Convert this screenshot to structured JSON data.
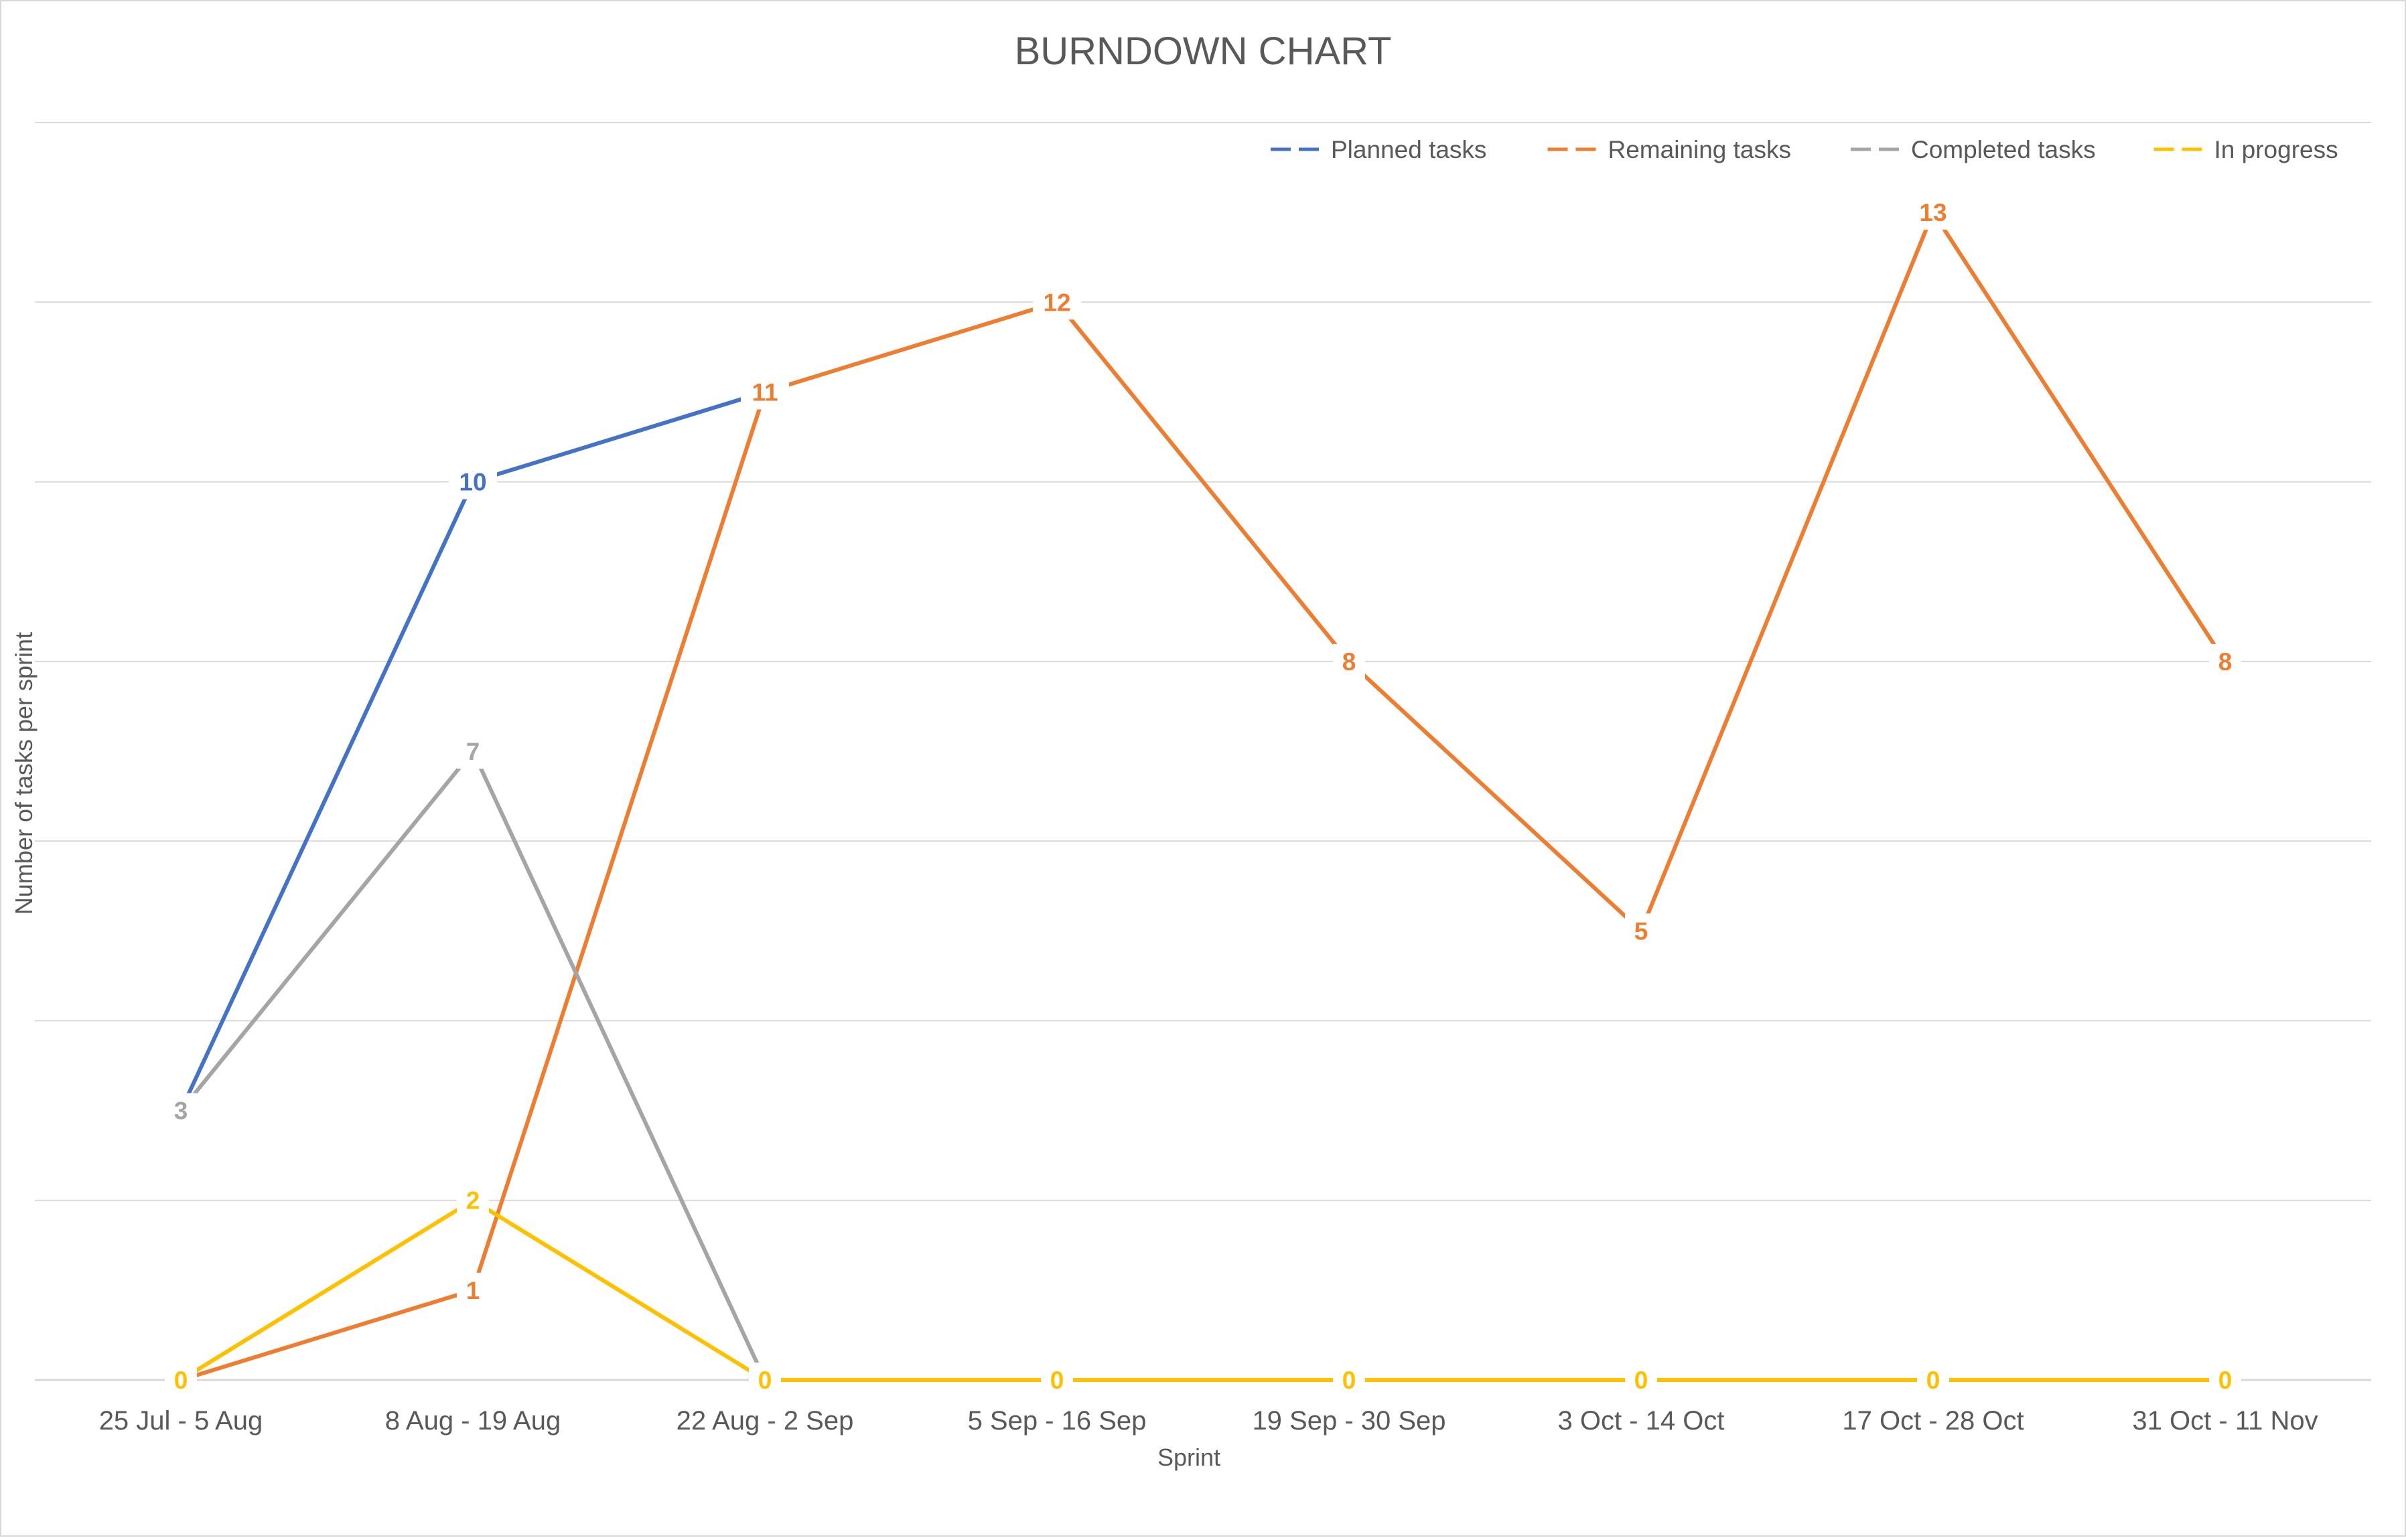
{
  "chart_data": {
    "type": "line",
    "title": "BURNDOWN CHART",
    "xlabel": "Sprint",
    "ylabel": "Number of tasks per sprint",
    "ylim": [
      0,
      14
    ],
    "grid": true,
    "legend_position": "top-right",
    "categories": [
      "25 Jul - 5 Aug",
      "8 Aug - 19 Aug",
      "22 Aug - 2 Sep",
      "5 Sep - 16 Sep",
      "19 Sep - 30 Sep",
      "3 Oct - 14 Oct",
      "17 Oct - 28 Oct",
      "31 Oct - 11 Nov"
    ],
    "series": [
      {
        "name": "Planned tasks",
        "color": "#4472C4",
        "values": [
          3,
          10,
          11,
          null,
          null,
          null,
          null,
          null
        ],
        "labels": [
          null,
          10,
          null,
          null,
          null,
          null,
          null,
          null
        ]
      },
      {
        "name": "Remaining tasks",
        "color": "#ED7D31",
        "values": [
          0,
          1,
          11,
          12,
          8,
          5,
          13,
          8
        ],
        "labels": [
          null,
          1,
          11,
          12,
          8,
          5,
          13,
          8
        ]
      },
      {
        "name": "Completed tasks",
        "color": "#A5A5A5",
        "values": [
          3,
          7,
          0,
          null,
          null,
          null,
          null,
          null
        ],
        "labels": [
          3,
          7,
          null,
          null,
          null,
          null,
          null,
          null
        ]
      },
      {
        "name": "In progress",
        "color": "#FFC000",
        "values": [
          0,
          2,
          0,
          0,
          0,
          0,
          0,
          0
        ],
        "labels": [
          0,
          2,
          0,
          0,
          0,
          0,
          0,
          0
        ]
      }
    ]
  }
}
